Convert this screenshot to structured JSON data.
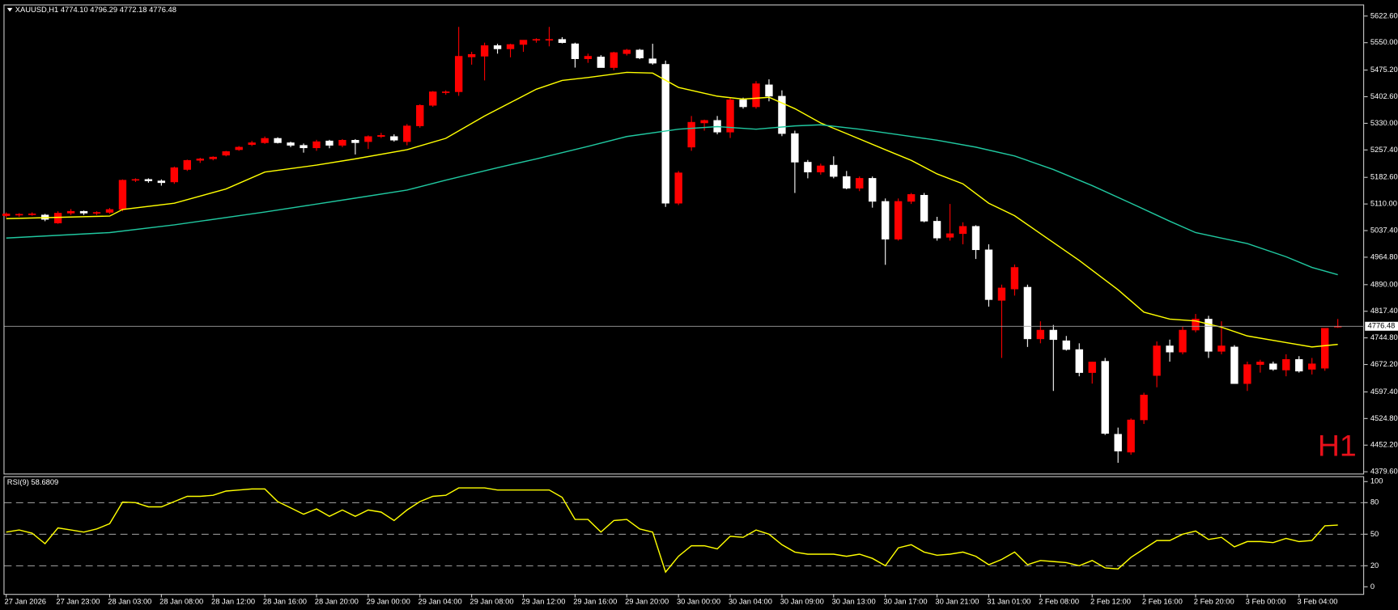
{
  "chart_data": [
    {
      "type": "candlestick",
      "title": "XAUUSD,H1  4774.10 4796.29 4772.18 4776.48",
      "annotation": "H1",
      "up_color": "#ff0000",
      "down_color": "#ffffff",
      "open": [
        5078,
        5080,
        5081,
        5080,
        5058,
        5085,
        5090,
        5085,
        5087,
        5095,
        5175,
        5177,
        5173,
        5170,
        5204,
        5229,
        5233,
        5243,
        5258,
        5272,
        5277,
        5289,
        5277,
        5270,
        5263,
        5282,
        5270,
        5284,
        5280,
        5294,
        5294,
        5280,
        5323,
        5379,
        5416,
        5416,
        5511,
        5513,
        5542,
        5533,
        5545,
        5557,
        5559,
        5559,
        5547,
        5506,
        5511,
        5482,
        5520,
        5530,
        5506,
        5491,
        5112,
        5265,
        5331,
        5338,
        5306,
        5394,
        5375,
        5435,
        5404,
        5302,
        5224,
        5197,
        5216,
        5185,
        5153,
        5180,
        5117,
        5014,
        5117,
        5134,
        5063,
        5019,
        5029,
        5049,
        4985,
        4847,
        4878,
        4883,
        4742,
        4766,
        4737,
        4713,
        4650,
        4681,
        4482,
        4433,
        4521,
        4642,
        4723,
        4706,
        4766,
        4796,
        4708,
        4720,
        4620,
        4672,
        4674,
        4657,
        4686,
        4659,
        4662,
        4774.1
      ],
      "high": [
        5087,
        5085,
        5087,
        5083,
        5090,
        5096,
        5092,
        5090,
        5099,
        5177,
        5180,
        5180,
        5177,
        5212,
        5231,
        5236,
        5240,
        5255,
        5268,
        5282,
        5294,
        5292,
        5280,
        5275,
        5285,
        5285,
        5287,
        5287,
        5297,
        5304,
        5300,
        5328,
        5382,
        5418,
        5420,
        5593,
        5525,
        5550,
        5547,
        5547,
        5557,
        5562,
        5593,
        5565,
        5550,
        5520,
        5516,
        5525,
        5533,
        5533,
        5547,
        5501,
        5200,
        5350,
        5340,
        5350,
        5400,
        5400,
        5445,
        5450,
        5420,
        5310,
        5230,
        5220,
        5240,
        5200,
        5185,
        5185,
        5125,
        5125,
        5140,
        5140,
        5075,
        5110,
        5060,
        5052,
        5000,
        4890,
        4945,
        4890,
        4790,
        4780,
        4750,
        4730,
        4680,
        4690,
        4500,
        4525,
        4595,
        4735,
        4740,
        4775,
        4810,
        4805,
        4790,
        4725,
        4680,
        4685,
        4680,
        4700,
        4695,
        4690,
        4771,
        4796.29
      ],
      "low": [
        5073,
        5075,
        5078,
        5063,
        5056,
        5080,
        5080,
        5080,
        5083,
        5090,
        5170,
        5168,
        5160,
        5165,
        5200,
        5222,
        5229,
        5240,
        5255,
        5268,
        5274,
        5275,
        5265,
        5250,
        5255,
        5262,
        5265,
        5245,
        5260,
        5290,
        5280,
        5270,
        5318,
        5375,
        5408,
        5405,
        5490,
        5447,
        5520,
        5510,
        5525,
        5550,
        5540,
        5548,
        5482,
        5495,
        5482,
        5475,
        5515,
        5505,
        5490,
        5102,
        5107,
        5255,
        5310,
        5300,
        5290,
        5370,
        5370,
        5390,
        5295,
        5140,
        5180,
        5190,
        5180,
        5150,
        5145,
        5100,
        4944,
        5010,
        5110,
        5060,
        5010,
        5010,
        5000,
        4960,
        4830,
        4690,
        4860,
        4720,
        4730,
        4600,
        4710,
        4640,
        4620,
        4480,
        4404,
        4426,
        4510,
        4610,
        4680,
        4700,
        4760,
        4690,
        4700,
        4620,
        4600,
        4650,
        4655,
        4640,
        4650,
        4645,
        4655,
        4772.18
      ],
      "close": [
        5083,
        5082,
        5083,
        5068,
        5085,
        5090,
        5085,
        5087,
        5095,
        5175,
        5177,
        5173,
        5168,
        5209,
        5229,
        5233,
        5238,
        5253,
        5265,
        5277,
        5289,
        5277,
        5270,
        5263,
        5280,
        5270,
        5284,
        5277,
        5294,
        5297,
        5284,
        5323,
        5379,
        5416,
        5416,
        5513,
        5518,
        5542,
        5533,
        5545,
        5557,
        5559,
        5559,
        5550,
        5506,
        5513,
        5482,
        5523,
        5530,
        5508,
        5494,
        5112,
        5195,
        5333,
        5338,
        5306,
        5394,
        5375,
        5438,
        5404,
        5302,
        5224,
        5197,
        5214,
        5185,
        5153,
        5180,
        5117,
        5014,
        5117,
        5136,
        5063,
        5017,
        5029,
        5049,
        4985,
        4849,
        4881,
        4937,
        4742,
        4766,
        4740,
        4713,
        4650,
        4679,
        4484,
        4436,
        4521,
        4589,
        4723,
        4706,
        4766,
        4796,
        4708,
        4723,
        4620,
        4672,
        4679,
        4659,
        4686,
        4654,
        4674,
        4771,
        4776.48
      ],
      "series": [
        {
          "color": "#ffff00",
          "x": [
            0,
            8,
            9,
            13,
            17,
            20,
            24,
            27,
            31,
            34,
            37,
            41,
            43,
            45,
            48,
            50,
            52,
            55,
            57,
            59,
            61,
            63,
            65,
            68,
            70,
            72,
            74,
            76,
            78,
            80,
            83,
            86,
            88,
            90,
            92,
            94,
            96,
            99,
            101,
            103
          ],
          "values": [
            5070,
            5077,
            5095,
            5112,
            5151,
            5197,
            5216,
            5233,
            5258,
            5289,
            5350,
            5423,
            5447,
            5455,
            5469,
            5467,
            5428,
            5404,
            5396,
            5401,
            5370,
            5331,
            5302,
            5258,
            5229,
            5192,
            5165,
            5112,
            5078,
            5029,
            4956,
            4876,
            4815,
            4796,
            4791,
            4774,
            4750,
            4732,
            4720,
            4727
          ]
        },
        {
          "color": "#20c8a0",
          "x": [
            0,
            8,
            13,
            20,
            27,
            31,
            34,
            38,
            41,
            45,
            48,
            52,
            55,
            58,
            61,
            63,
            66,
            69,
            72,
            75,
            78,
            81,
            84,
            87,
            90,
            92,
            94,
            96,
            99,
            101,
            103
          ],
          "values": [
            5017,
            5032,
            5053,
            5088,
            5126,
            5148,
            5175,
            5209,
            5233,
            5267,
            5294,
            5314,
            5321,
            5314,
            5323,
            5326,
            5314,
            5299,
            5284,
            5265,
            5241,
            5204,
            5160,
            5112,
            5063,
            5032,
            5017,
            5002,
            4966,
            4937,
            4917
          ]
        }
      ],
      "last_price": {
        "value": 4776.48,
        "label": "4776.48"
      },
      "ylim": [
        4374.7,
        5654.2
      ],
      "yticks": [
        {
          "value": 5622.6,
          "label": "5622.60"
        },
        {
          "value": 5550,
          "label": "5550.00"
        },
        {
          "value": 5475.2,
          "label": "5475.20"
        },
        {
          "value": 5402.6,
          "label": "5402.60"
        },
        {
          "value": 5330,
          "label": "5330.00"
        },
        {
          "value": 5257.4,
          "label": "5257.40"
        },
        {
          "value": 5182.6,
          "label": "5182.60"
        },
        {
          "value": 5110,
          "label": "5110.00"
        },
        {
          "value": 5037.4,
          "label": "5037.40"
        },
        {
          "value": 4964.8,
          "label": "4964.80"
        },
        {
          "value": 4890,
          "label": "4890.00"
        },
        {
          "value": 4817.4,
          "label": "4817.40"
        },
        {
          "value": 4744.8,
          "label": "4744.80"
        },
        {
          "value": 4672.2,
          "label": "4672.20"
        },
        {
          "value": 4597.4,
          "label": "4597.40"
        },
        {
          "value": 4524.8,
          "label": "4524.80"
        },
        {
          "value": 4452.2,
          "label": "4452.20"
        },
        {
          "value": 4379.6,
          "label": "4379.60"
        }
      ]
    },
    {
      "type": "line",
      "title": "RSI(9) 58.6809",
      "color": "#ffff00",
      "categories": [
        "27 Jan 2026",
        null,
        null,
        null,
        "27 Jan 23:00",
        null,
        null,
        null,
        "28 Jan 03:00",
        null,
        null,
        null,
        "28 Jan 08:00",
        null,
        null,
        null,
        "28 Jan 12:00",
        null,
        null,
        null,
        "28 Jan 16:00",
        null,
        null,
        null,
        "28 Jan 20:00",
        null,
        null,
        null,
        "29 Jan 00:00",
        null,
        null,
        null,
        "29 Jan 04:00",
        null,
        null,
        null,
        "29 Jan 08:00",
        null,
        null,
        null,
        "29 Jan 12:00",
        null,
        null,
        null,
        "29 Jan 16:00",
        null,
        null,
        null,
        "29 Jan 20:00",
        null,
        null,
        null,
        "30 Jan 00:00",
        null,
        null,
        null,
        "30 Jan 04:00",
        null,
        null,
        null,
        "30 Jan 09:00",
        null,
        null,
        null,
        "30 Jan 13:00",
        null,
        null,
        null,
        "30 Jan 17:00",
        null,
        null,
        null,
        "30 Jan 21:00",
        null,
        null,
        null,
        "31 Jan 01:00",
        null,
        null,
        null,
        "2 Feb 08:00",
        null,
        null,
        null,
        "2 Feb 12:00",
        null,
        null,
        null,
        "2 Feb 16:00",
        null,
        null,
        null,
        "2 Feb 20:00",
        null,
        null,
        null,
        "3 Feb 00:00",
        null,
        null,
        null,
        "3 Feb 04:00",
        null,
        null,
        null
      ],
      "values": [
        52,
        54,
        51,
        41,
        56,
        54,
        52,
        55,
        60,
        80.5,
        80,
        76,
        76,
        81,
        86,
        86,
        87,
        91,
        92,
        93,
        93,
        81,
        75,
        69,
        74,
        67,
        73,
        67,
        73,
        71,
        63,
        73,
        81,
        86,
        87,
        94,
        94,
        94,
        92,
        92,
        92,
        92,
        92,
        85,
        64,
        64,
        52,
        63,
        64,
        55,
        52,
        14,
        29,
        39,
        39,
        36,
        48,
        47,
        54,
        50,
        40,
        33,
        31,
        31,
        31,
        29,
        31,
        27,
        20,
        37,
        40,
        33,
        30,
        31,
        33,
        29,
        21,
        26,
        33,
        21,
        25,
        24,
        23,
        20,
        25,
        18,
        17,
        28,
        36,
        44,
        44,
        50,
        53,
        45,
        47,
        38,
        43,
        43,
        42,
        46,
        43,
        44,
        58,
        58.6809
      ],
      "ylim": [
        -6.8,
        105.1
      ],
      "yticks": [
        100,
        80,
        50,
        20,
        0
      ],
      "level_lines": true
    }
  ]
}
